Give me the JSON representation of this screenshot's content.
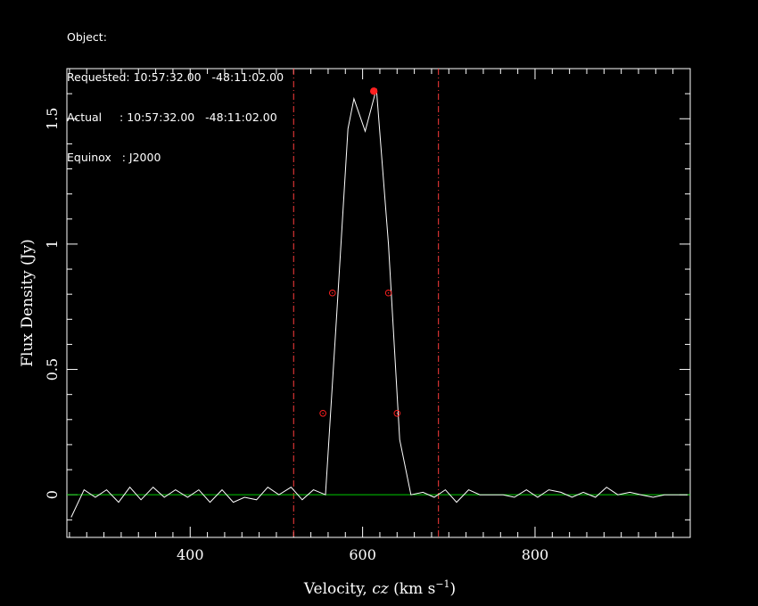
{
  "header": {
    "lines": [
      "Object:",
      "Requested: 10:57:32.00   -48:11:02.00",
      "Actual     : 10:57:32.00   -48:11:02.00",
      "Equinox   : J2000"
    ]
  },
  "colors": {
    "background": "#000000",
    "spectrum": "#ffffff",
    "baseline": "#00cc00",
    "markers": "#ff2020",
    "window_lines": "#ff3b3b",
    "axes": "#ffffff"
  },
  "chart_data": {
    "type": "line",
    "xlabel": "Velocity, cz (km s",
    "xlabel_sup": "−1",
    "xlabel_close": ")",
    "xlabel_italic": "cz",
    "ylabel": "Flux Density (Jy)",
    "xlim": [
      257,
      980
    ],
    "ylim": [
      -0.17,
      1.7
    ],
    "x_ticks": [
      400,
      600,
      800
    ],
    "x_tick_labels": [
      "400",
      "600",
      "800"
    ],
    "y_ticks": [
      0,
      0.5,
      1,
      1.5
    ],
    "y_tick_labels": [
      "0",
      "0.5",
      "1",
      "1.5"
    ],
    "x_minor_step": 20,
    "y_minor_step": 0.1,
    "series": [
      {
        "style": "spectrum",
        "x": [
          262,
          277,
          290,
          303,
          317,
          330,
          343,
          357,
          370,
          383,
          397,
          410,
          423,
          437,
          450,
          463,
          477,
          490,
          503,
          517,
          530,
          543,
          557,
          570,
          583,
          590,
          603,
          616,
          630,
          643,
          656,
          670,
          683,
          696,
          709,
          723,
          736,
          750,
          763,
          776,
          790,
          803,
          816,
          830,
          843,
          856,
          870,
          883,
          896,
          910,
          923,
          937,
          950,
          963,
          977
        ],
        "y": [
          -0.09,
          0.02,
          -0.01,
          0.02,
          -0.03,
          0.03,
          -0.02,
          0.03,
          -0.01,
          0.02,
          -0.01,
          0.02,
          -0.03,
          0.02,
          -0.03,
          -0.01,
          -0.02,
          0.03,
          0.0,
          0.03,
          -0.02,
          0.02,
          0.0,
          0.72,
          1.46,
          1.58,
          1.45,
          1.62,
          1.0,
          0.22,
          0.0,
          0.01,
          -0.01,
          0.02,
          -0.03,
          0.02,
          0.0,
          0.0,
          0.0,
          -0.01,
          0.02,
          -0.01,
          0.02,
          0.01,
          -0.01,
          0.01,
          -0.01,
          0.03,
          0.0,
          0.01,
          0.0,
          -0.01,
          0.0,
          0.0,
          0.0
        ]
      }
    ],
    "baseline": [
      {
        "x": 257,
        "y": 0
      },
      {
        "x": 980,
        "y": 0
      }
    ],
    "window_lines": [
      520,
      688
    ],
    "peak_marker": {
      "x": 613,
      "y": 1.61
    },
    "width_markers": [
      {
        "x": 554,
        "y": 0.325
      },
      {
        "x": 565,
        "y": 0.805
      },
      {
        "x": 630,
        "y": 0.805
      },
      {
        "x": 640,
        "y": 0.325
      }
    ]
  }
}
